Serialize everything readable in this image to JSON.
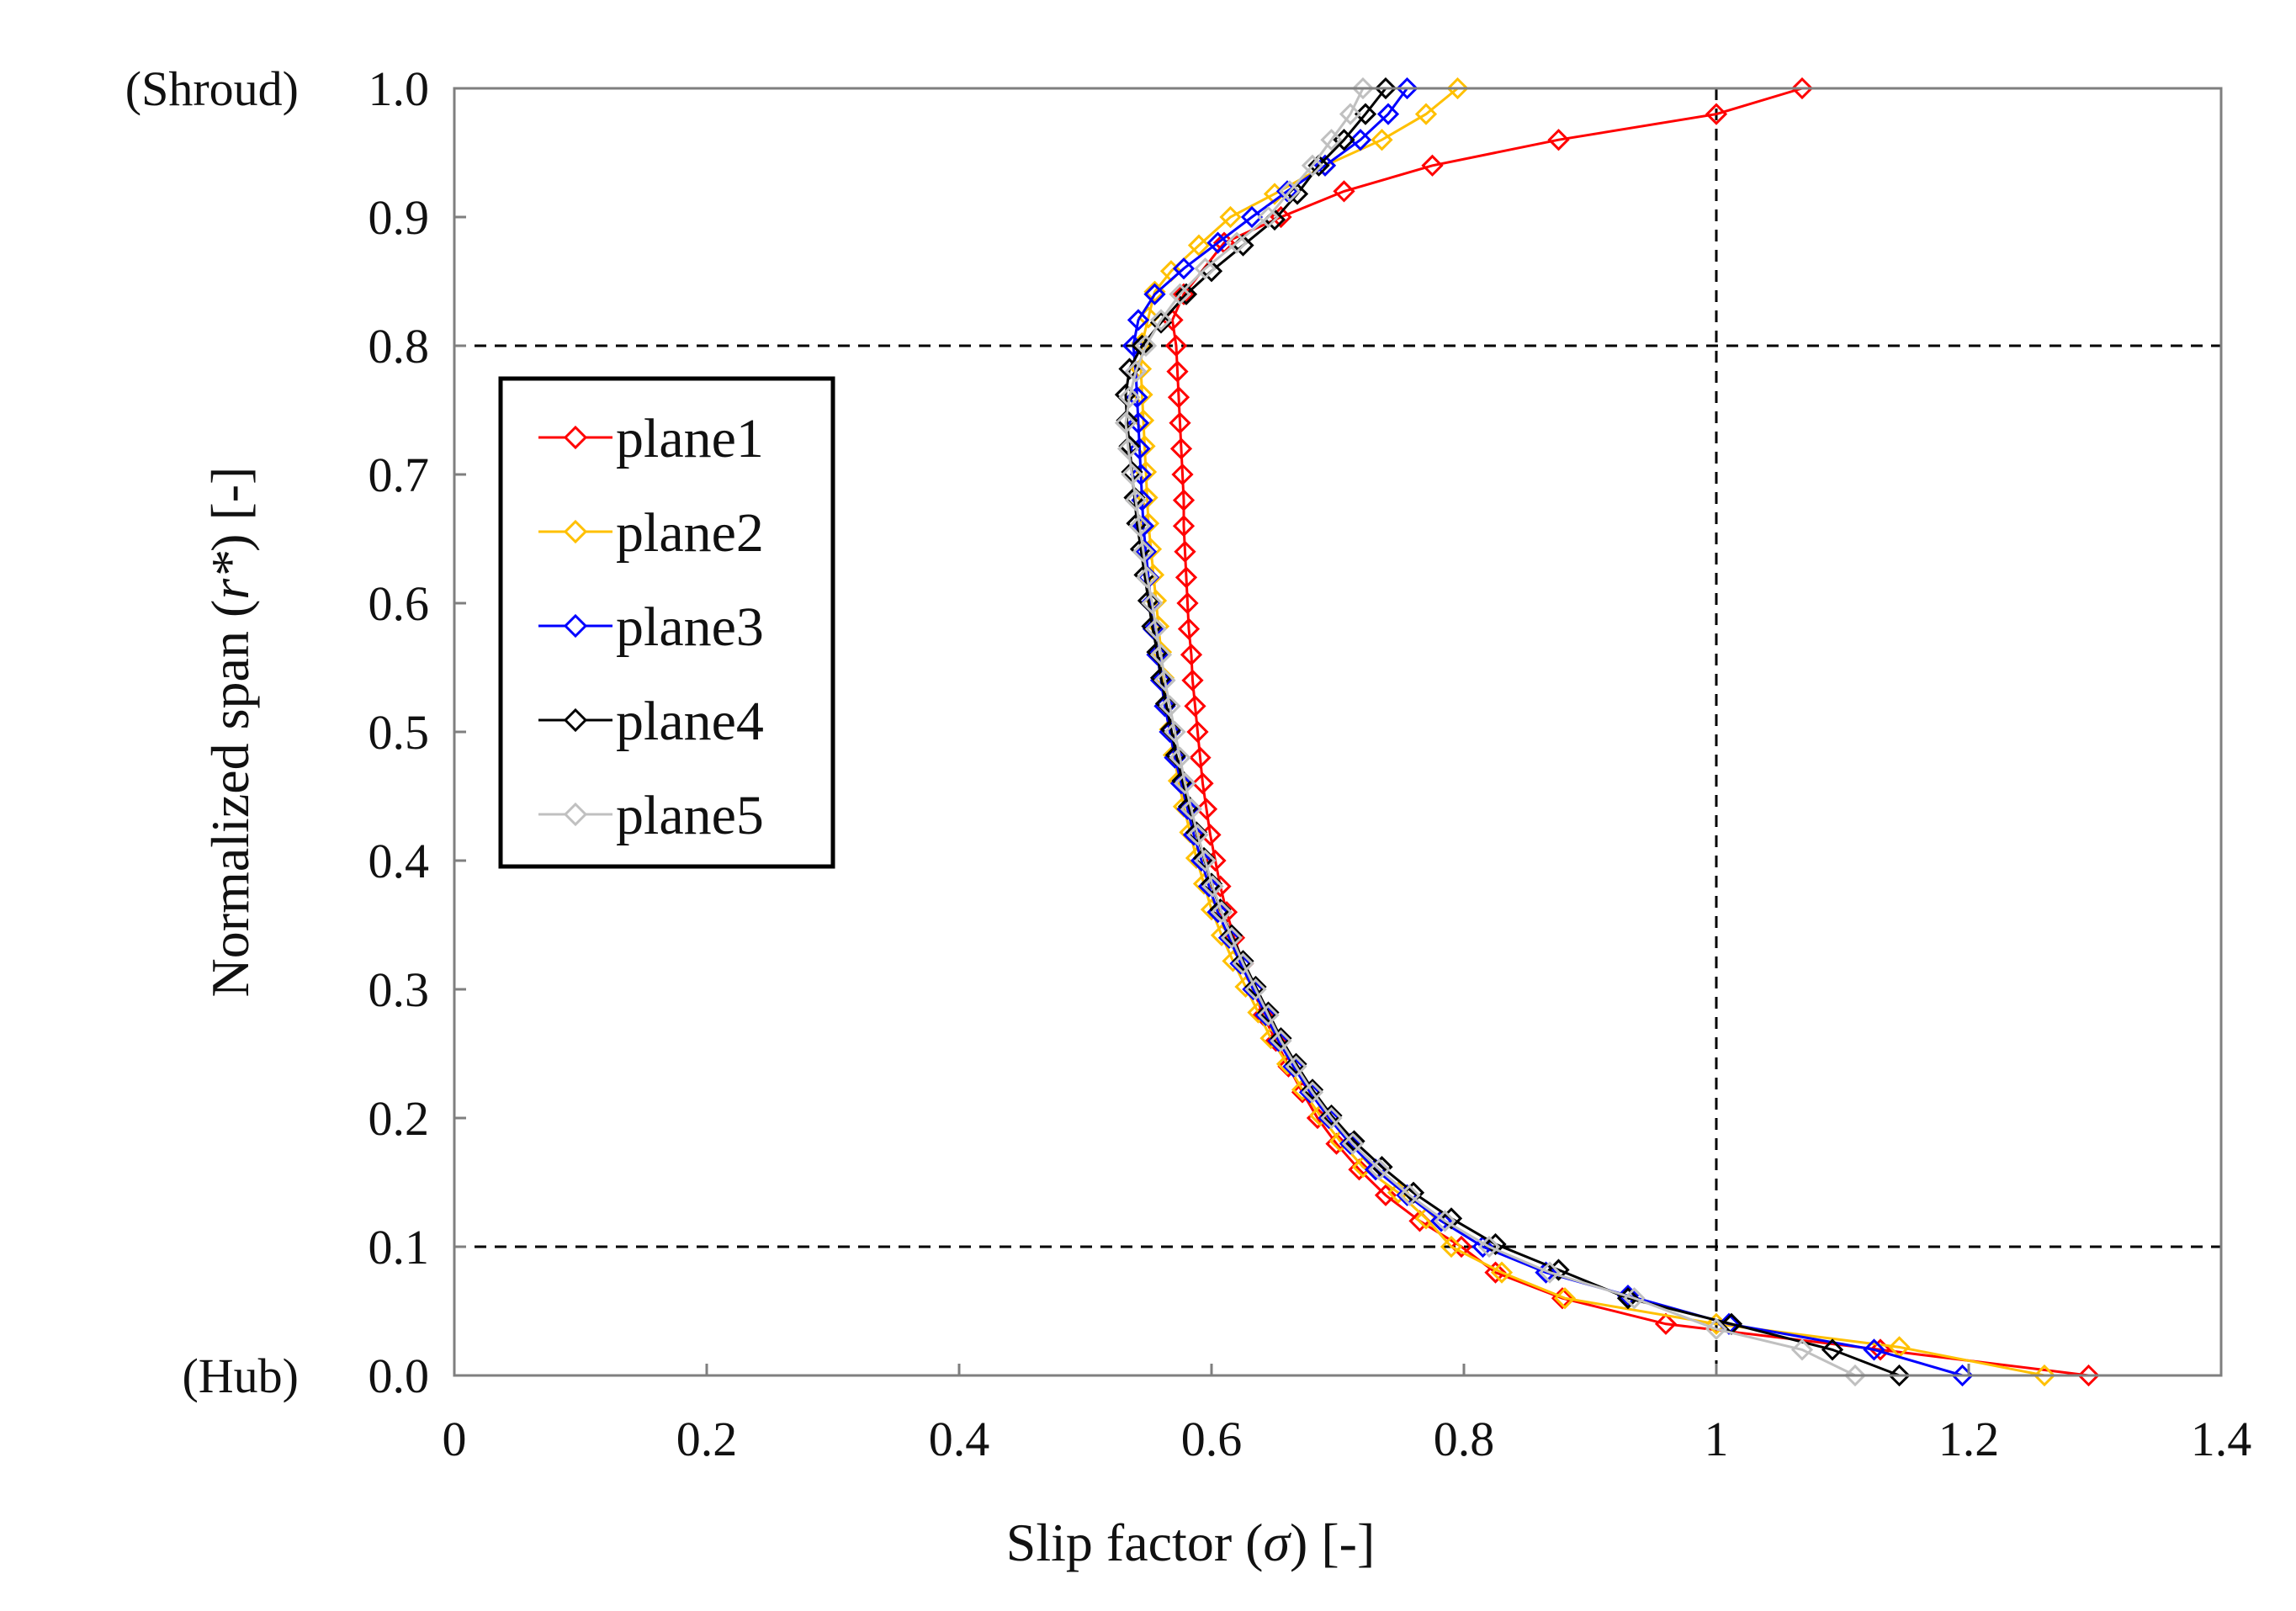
{
  "chart_data": {
    "type": "line",
    "title": "",
    "xlabel_prefix": "Slip factor (",
    "xlabel_symbol": "σ",
    "xlabel_suffix": ") [-]",
    "ylabel_prefix": "Normalized span (",
    "ylabel_symbol": "r*",
    "ylabel_suffix": ") [-]",
    "xlim": [
      0,
      1.4
    ],
    "ylim": [
      0,
      1.0
    ],
    "xticks": [
      0,
      0.2,
      0.4,
      0.6,
      0.8,
      1,
      1.2,
      1.4
    ],
    "xtick_labels": [
      "0",
      "0.2",
      "0.4",
      "0.6",
      "0.8",
      "1",
      "1.2",
      "1.4"
    ],
    "yticks": [
      0,
      0.1,
      0.2,
      0.3,
      0.4,
      0.5,
      0.6,
      0.7,
      0.8,
      0.9,
      1.0
    ],
    "ytick_labels": [
      "0.0",
      "0.1",
      "0.2",
      "0.3",
      "0.4",
      "0.5",
      "0.6",
      "0.7",
      "0.8",
      "0.9",
      "1.0"
    ],
    "ytick_prefixes": {
      "0": "(Hub)",
      "10": "(Shroud)"
    },
    "reference_lines": {
      "vertical_x": [
        1.0
      ],
      "horizontal_y": [
        0.1,
        0.8
      ],
      "style": "dashed"
    },
    "legend": {
      "position": "left-center",
      "framed": true
    },
    "marker": "diamond-open",
    "series": [
      {
        "name": "plane1",
        "color": "#ff0000",
        "points": [
          [
            1.295,
            0.0
          ],
          [
            1.13,
            0.02
          ],
          [
            0.96,
            0.04
          ],
          [
            0.878,
            0.06
          ],
          [
            0.825,
            0.08
          ],
          [
            0.798,
            0.1
          ],
          [
            0.765,
            0.12
          ],
          [
            0.738,
            0.14
          ],
          [
            0.717,
            0.16
          ],
          [
            0.699,
            0.18
          ],
          [
            0.684,
            0.2
          ],
          [
            0.672,
            0.22
          ],
          [
            0.661,
            0.24
          ],
          [
            0.651,
            0.26
          ],
          [
            0.641,
            0.28
          ],
          [
            0.633,
            0.3
          ],
          [
            0.625,
            0.32
          ],
          [
            0.618,
            0.34
          ],
          [
            0.612,
            0.36
          ],
          [
            0.607,
            0.38
          ],
          [
            0.603,
            0.4
          ],
          [
            0.599,
            0.42
          ],
          [
            0.596,
            0.44
          ],
          [
            0.593,
            0.46
          ],
          [
            0.591,
            0.48
          ],
          [
            0.589,
            0.5
          ],
          [
            0.587,
            0.52
          ],
          [
            0.585,
            0.54
          ],
          [
            0.584,
            0.56
          ],
          [
            0.582,
            0.58
          ],
          [
            0.581,
            0.6
          ],
          [
            0.58,
            0.62
          ],
          [
            0.579,
            0.64
          ],
          [
            0.578,
            0.66
          ],
          [
            0.578,
            0.68
          ],
          [
            0.577,
            0.7
          ],
          [
            0.576,
            0.72
          ],
          [
            0.575,
            0.74
          ],
          [
            0.574,
            0.76
          ],
          [
            0.573,
            0.78
          ],
          [
            0.572,
            0.8
          ],
          [
            0.569,
            0.82
          ],
          [
            0.578,
            0.84
          ],
          [
            0.61,
            0.88
          ],
          [
            0.655,
            0.9
          ],
          [
            0.705,
            0.92
          ],
          [
            0.775,
            0.94
          ],
          [
            0.875,
            0.96
          ],
          [
            1.0,
            0.98
          ],
          [
            1.068,
            1.0
          ]
        ]
      },
      {
        "name": "plane2",
        "color": "#ffc000",
        "points": [
          [
            1.26,
            0.0
          ],
          [
            1.145,
            0.022
          ],
          [
            1.0,
            0.04
          ],
          [
            0.88,
            0.06
          ],
          [
            0.83,
            0.08
          ],
          [
            0.79,
            0.1
          ],
          [
            0.77,
            0.122
          ],
          [
            0.748,
            0.142
          ],
          [
            0.72,
            0.162
          ],
          [
            0.702,
            0.182
          ],
          [
            0.686,
            0.202
          ],
          [
            0.672,
            0.222
          ],
          [
            0.66,
            0.242
          ],
          [
            0.647,
            0.262
          ],
          [
            0.637,
            0.282
          ],
          [
            0.627,
            0.302
          ],
          [
            0.617,
            0.322
          ],
          [
            0.608,
            0.342
          ],
          [
            0.6,
            0.362
          ],
          [
            0.594,
            0.382
          ],
          [
            0.588,
            0.402
          ],
          [
            0.583,
            0.422
          ],
          [
            0.578,
            0.442
          ],
          [
            0.574,
            0.462
          ],
          [
            0.57,
            0.482
          ],
          [
            0.567,
            0.502
          ],
          [
            0.564,
            0.522
          ],
          [
            0.562,
            0.542
          ],
          [
            0.56,
            0.562
          ],
          [
            0.558,
            0.582
          ],
          [
            0.556,
            0.602
          ],
          [
            0.554,
            0.622
          ],
          [
            0.552,
            0.642
          ],
          [
            0.55,
            0.662
          ],
          [
            0.549,
            0.682
          ],
          [
            0.548,
            0.702
          ],
          [
            0.547,
            0.722
          ],
          [
            0.546,
            0.742
          ],
          [
            0.545,
            0.762
          ],
          [
            0.544,
            0.782
          ],
          [
            0.545,
            0.802
          ],
          [
            0.55,
            0.822
          ],
          [
            0.555,
            0.842
          ],
          [
            0.568,
            0.858
          ],
          [
            0.59,
            0.878
          ],
          [
            0.615,
            0.9
          ],
          [
            0.65,
            0.918
          ],
          [
            0.69,
            0.94
          ],
          [
            0.735,
            0.96
          ],
          [
            0.77,
            0.98
          ],
          [
            0.795,
            1.0
          ]
        ]
      },
      {
        "name": "plane3",
        "color": "#0000ff",
        "points": [
          [
            1.195,
            0.0
          ],
          [
            1.125,
            0.02
          ],
          [
            1.01,
            0.04
          ],
          [
            0.93,
            0.062
          ],
          [
            0.865,
            0.08
          ],
          [
            0.815,
            0.1
          ],
          [
            0.782,
            0.12
          ],
          [
            0.755,
            0.14
          ],
          [
            0.73,
            0.16
          ],
          [
            0.71,
            0.18
          ],
          [
            0.693,
            0.2
          ],
          [
            0.678,
            0.22
          ],
          [
            0.665,
            0.24
          ],
          [
            0.653,
            0.26
          ],
          [
            0.643,
            0.28
          ],
          [
            0.633,
            0.3
          ],
          [
            0.623,
            0.32
          ],
          [
            0.614,
            0.34
          ],
          [
            0.605,
            0.36
          ],
          [
            0.598,
            0.38
          ],
          [
            0.592,
            0.4
          ],
          [
            0.586,
            0.42
          ],
          [
            0.581,
            0.44
          ],
          [
            0.576,
            0.46
          ],
          [
            0.571,
            0.48
          ],
          [
            0.567,
            0.5
          ],
          [
            0.563,
            0.52
          ],
          [
            0.56,
            0.54
          ],
          [
            0.557,
            0.56
          ],
          [
            0.554,
            0.58
          ],
          [
            0.552,
            0.6
          ],
          [
            0.55,
            0.62
          ],
          [
            0.548,
            0.64
          ],
          [
            0.546,
            0.66
          ],
          [
            0.545,
            0.68
          ],
          [
            0.544,
            0.7
          ],
          [
            0.543,
            0.72
          ],
          [
            0.542,
            0.74
          ],
          [
            0.541,
            0.76
          ],
          [
            0.54,
            0.78
          ],
          [
            0.538,
            0.8
          ],
          [
            0.542,
            0.82
          ],
          [
            0.555,
            0.84
          ],
          [
            0.578,
            0.86
          ],
          [
            0.605,
            0.88
          ],
          [
            0.632,
            0.9
          ],
          [
            0.66,
            0.92
          ],
          [
            0.69,
            0.94
          ],
          [
            0.718,
            0.96
          ],
          [
            0.74,
            0.98
          ],
          [
            0.755,
            1.0
          ]
        ]
      },
      {
        "name": "plane4",
        "color": "#000000",
        "points": [
          [
            1.145,
            0.0
          ],
          [
            1.092,
            0.02
          ],
          [
            1.012,
            0.04
          ],
          [
            0.93,
            0.06
          ],
          [
            0.875,
            0.082
          ],
          [
            0.825,
            0.102
          ],
          [
            0.79,
            0.122
          ],
          [
            0.76,
            0.142
          ],
          [
            0.735,
            0.162
          ],
          [
            0.713,
            0.182
          ],
          [
            0.695,
            0.202
          ],
          [
            0.68,
            0.222
          ],
          [
            0.667,
            0.242
          ],
          [
            0.655,
            0.262
          ],
          [
            0.645,
            0.282
          ],
          [
            0.635,
            0.302
          ],
          [
            0.625,
            0.322
          ],
          [
            0.616,
            0.342
          ],
          [
            0.607,
            0.362
          ],
          [
            0.6,
            0.382
          ],
          [
            0.594,
            0.402
          ],
          [
            0.588,
            0.422
          ],
          [
            0.582,
            0.442
          ],
          [
            0.577,
            0.462
          ],
          [
            0.572,
            0.482
          ],
          [
            0.568,
            0.502
          ],
          [
            0.564,
            0.522
          ],
          [
            0.56,
            0.542
          ],
          [
            0.557,
            0.562
          ],
          [
            0.553,
            0.582
          ],
          [
            0.55,
            0.602
          ],
          [
            0.547,
            0.622
          ],
          [
            0.544,
            0.642
          ],
          [
            0.541,
            0.662
          ],
          [
            0.539,
            0.682
          ],
          [
            0.537,
            0.702
          ],
          [
            0.535,
            0.722
          ],
          [
            0.533,
            0.742
          ],
          [
            0.532,
            0.762
          ],
          [
            0.535,
            0.782
          ],
          [
            0.545,
            0.8
          ],
          [
            0.56,
            0.818
          ],
          [
            0.58,
            0.84
          ],
          [
            0.6,
            0.858
          ],
          [
            0.625,
            0.878
          ],
          [
            0.65,
            0.898
          ],
          [
            0.668,
            0.918
          ],
          [
            0.685,
            0.94
          ],
          [
            0.705,
            0.96
          ],
          [
            0.722,
            0.98
          ],
          [
            0.738,
            1.0
          ]
        ]
      },
      {
        "name": "plane5",
        "color": "#c0c0c0",
        "points": [
          [
            1.11,
            0.0
          ],
          [
            1.068,
            0.02
          ],
          [
            1.0,
            0.036
          ],
          [
            0.935,
            0.06
          ],
          [
            0.868,
            0.08
          ],
          [
            0.82,
            0.1
          ],
          [
            0.785,
            0.12
          ],
          [
            0.757,
            0.14
          ],
          [
            0.733,
            0.16
          ],
          [
            0.712,
            0.18
          ],
          [
            0.695,
            0.2
          ],
          [
            0.68,
            0.22
          ],
          [
            0.667,
            0.24
          ],
          [
            0.655,
            0.26
          ],
          [
            0.645,
            0.28
          ],
          [
            0.635,
            0.3
          ],
          [
            0.625,
            0.32
          ],
          [
            0.616,
            0.34
          ],
          [
            0.608,
            0.36
          ],
          [
            0.601,
            0.38
          ],
          [
            0.595,
            0.4
          ],
          [
            0.589,
            0.42
          ],
          [
            0.584,
            0.44
          ],
          [
            0.579,
            0.46
          ],
          [
            0.575,
            0.48
          ],
          [
            0.571,
            0.5
          ],
          [
            0.567,
            0.52
          ],
          [
            0.563,
            0.54
          ],
          [
            0.56,
            0.56
          ],
          [
            0.556,
            0.58
          ],
          [
            0.553,
            0.6
          ],
          [
            0.549,
            0.62
          ],
          [
            0.546,
            0.64
          ],
          [
            0.543,
            0.66
          ],
          [
            0.54,
            0.68
          ],
          [
            0.537,
            0.7
          ],
          [
            0.534,
            0.72
          ],
          [
            0.532,
            0.74
          ],
          [
            0.535,
            0.76
          ],
          [
            0.54,
            0.78
          ],
          [
            0.548,
            0.8
          ],
          [
            0.56,
            0.82
          ],
          [
            0.575,
            0.84
          ],
          [
            0.595,
            0.86
          ],
          [
            0.62,
            0.88
          ],
          [
            0.645,
            0.9
          ],
          [
            0.662,
            0.92
          ],
          [
            0.68,
            0.94
          ],
          [
            0.695,
            0.96
          ],
          [
            0.71,
            0.98
          ],
          [
            0.72,
            1.0
          ]
        ]
      }
    ]
  }
}
